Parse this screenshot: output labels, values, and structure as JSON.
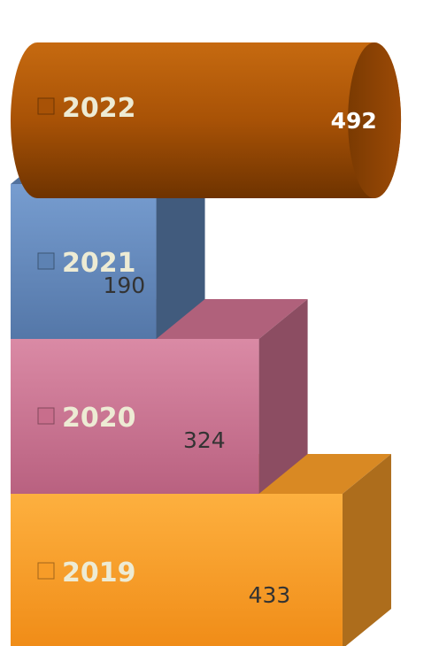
{
  "chart_data": {
    "type": "bar",
    "orientation": "horizontal",
    "style": "3d-stacked-blocks",
    "categories": [
      "2019",
      "2020",
      "2021",
      "2022"
    ],
    "values": [
      433,
      324,
      190,
      492
    ],
    "colors": [
      "#F79C28",
      "#C86E8C",
      "#5D82B3",
      "#A85206"
    ],
    "label_color": "#EDEBD4",
    "value_color": "#333333",
    "title": "",
    "xlabel": "",
    "ylabel": "",
    "legend": "none",
    "grid": false
  }
}
